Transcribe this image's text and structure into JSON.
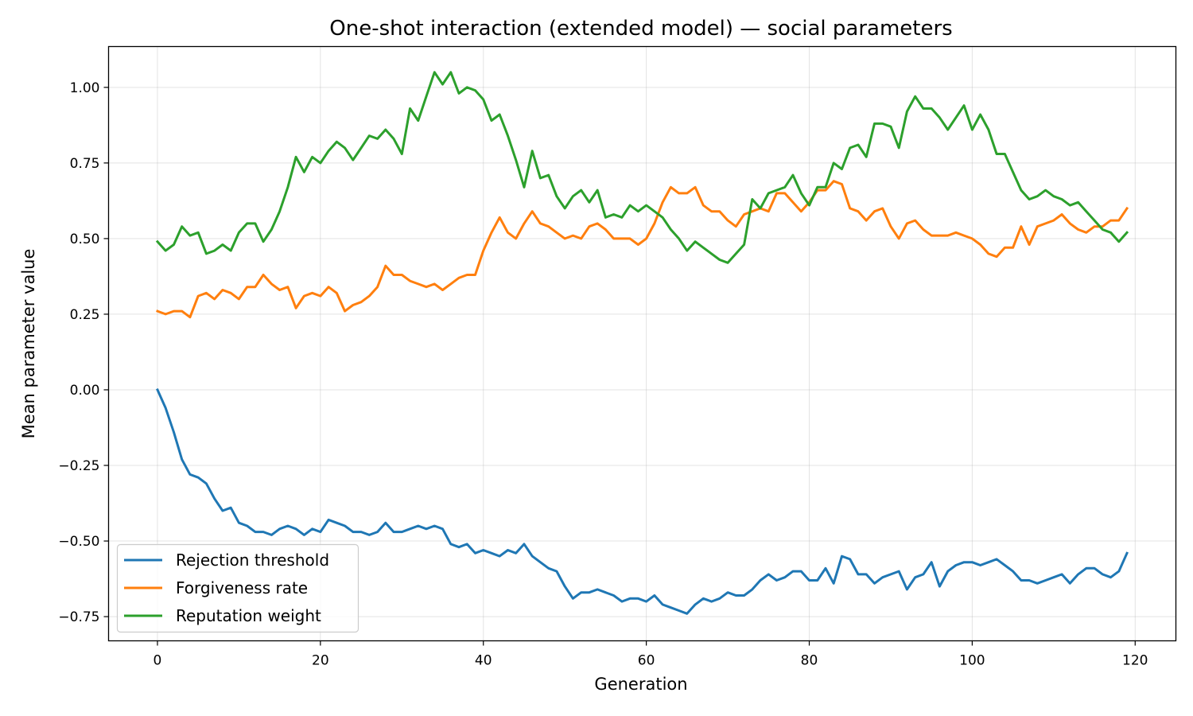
{
  "chart_data": {
    "type": "line",
    "title": "One-shot interaction (extended model) — social parameters",
    "xlabel": "Generation",
    "ylabel": "Mean parameter value",
    "xlim": [
      -6,
      125
    ],
    "ylim": [
      -0.83,
      1.135
    ],
    "xticks": [
      0,
      20,
      40,
      60,
      80,
      100,
      120
    ],
    "xtick_labels": [
      "0",
      "20",
      "40",
      "60",
      "80",
      "100",
      "120"
    ],
    "yticks": [
      -0.75,
      -0.5,
      -0.25,
      0.0,
      0.25,
      0.5,
      0.75,
      1.0
    ],
    "ytick_labels": [
      "−0.75",
      "−0.50",
      "−0.25",
      "0.00",
      "0.25",
      "0.50",
      "0.75",
      "1.00"
    ],
    "grid": true,
    "legend_position": "lower-left",
    "series": [
      {
        "name": "Rejection threshold",
        "color": "#1f77b4",
        "values": [
          0.0,
          -0.06,
          -0.14,
          -0.23,
          -0.28,
          -0.29,
          -0.31,
          -0.36,
          -0.4,
          -0.39,
          -0.44,
          -0.45,
          -0.47,
          -0.47,
          -0.48,
          -0.46,
          -0.45,
          -0.46,
          -0.48,
          -0.46,
          -0.47,
          -0.43,
          -0.44,
          -0.45,
          -0.47,
          -0.47,
          -0.48,
          -0.47,
          -0.44,
          -0.47,
          -0.47,
          -0.46,
          -0.45,
          -0.46,
          -0.45,
          -0.46,
          -0.51,
          -0.52,
          -0.51,
          -0.54,
          -0.53,
          -0.54,
          -0.55,
          -0.53,
          -0.54,
          -0.51,
          -0.55,
          -0.57,
          -0.59,
          -0.6,
          -0.65,
          -0.69,
          -0.67,
          -0.67,
          -0.66,
          -0.67,
          -0.68,
          -0.7,
          -0.69,
          -0.69,
          -0.7,
          -0.68,
          -0.71,
          -0.72,
          -0.73,
          -0.74,
          -0.71,
          -0.69,
          -0.7,
          -0.69,
          -0.67,
          -0.68,
          -0.68,
          -0.66,
          -0.63,
          -0.61,
          -0.63,
          -0.62,
          -0.6,
          -0.6,
          -0.63,
          -0.63,
          -0.59,
          -0.64,
          -0.55,
          -0.56,
          -0.61,
          -0.61,
          -0.64,
          -0.62,
          -0.61,
          -0.6,
          -0.66,
          -0.62,
          -0.61,
          -0.57,
          -0.65,
          -0.6,
          -0.58,
          -0.57,
          -0.57,
          -0.58,
          -0.57,
          -0.56,
          -0.58,
          -0.6,
          -0.63,
          -0.63,
          -0.64,
          -0.63,
          -0.62,
          -0.61,
          -0.64,
          -0.61,
          -0.59,
          -0.59,
          -0.61,
          -0.62,
          -0.6,
          -0.54
        ]
      },
      {
        "name": "Forgiveness rate",
        "color": "#ff7f0e",
        "values": [
          0.26,
          0.25,
          0.26,
          0.26,
          0.24,
          0.31,
          0.32,
          0.3,
          0.33,
          0.32,
          0.3,
          0.34,
          0.34,
          0.38,
          0.35,
          0.33,
          0.34,
          0.27,
          0.31,
          0.32,
          0.31,
          0.34,
          0.32,
          0.26,
          0.28,
          0.29,
          0.31,
          0.34,
          0.41,
          0.38,
          0.38,
          0.36,
          0.35,
          0.34,
          0.35,
          0.33,
          0.35,
          0.37,
          0.38,
          0.38,
          0.46,
          0.52,
          0.57,
          0.52,
          0.5,
          0.55,
          0.59,
          0.55,
          0.54,
          0.52,
          0.5,
          0.51,
          0.5,
          0.54,
          0.55,
          0.53,
          0.5,
          0.5,
          0.5,
          0.48,
          0.5,
          0.55,
          0.62,
          0.67,
          0.65,
          0.65,
          0.67,
          0.61,
          0.59,
          0.59,
          0.56,
          0.54,
          0.58,
          0.59,
          0.6,
          0.59,
          0.65,
          0.65,
          0.62,
          0.59,
          0.62,
          0.66,
          0.66,
          0.69,
          0.68,
          0.6,
          0.59,
          0.56,
          0.59,
          0.6,
          0.54,
          0.5,
          0.55,
          0.56,
          0.53,
          0.51,
          0.51,
          0.51,
          0.52,
          0.51,
          0.5,
          0.48,
          0.45,
          0.44,
          0.47,
          0.47,
          0.54,
          0.48,
          0.54,
          0.55,
          0.56,
          0.58,
          0.55,
          0.53,
          0.52,
          0.54,
          0.54,
          0.56,
          0.56,
          0.6
        ]
      },
      {
        "name": "Reputation weight",
        "color": "#2ca02c",
        "values": [
          0.49,
          0.46,
          0.48,
          0.54,
          0.51,
          0.52,
          0.45,
          0.46,
          0.48,
          0.46,
          0.52,
          0.55,
          0.55,
          0.49,
          0.53,
          0.59,
          0.67,
          0.77,
          0.72,
          0.77,
          0.75,
          0.79,
          0.82,
          0.8,
          0.76,
          0.8,
          0.84,
          0.83,
          0.86,
          0.83,
          0.78,
          0.93,
          0.89,
          0.97,
          1.05,
          1.01,
          1.05,
          0.98,
          1.0,
          0.99,
          0.96,
          0.89,
          0.91,
          0.84,
          0.76,
          0.67,
          0.79,
          0.7,
          0.71,
          0.64,
          0.6,
          0.64,
          0.66,
          0.62,
          0.66,
          0.57,
          0.58,
          0.57,
          0.61,
          0.59,
          0.61,
          0.59,
          0.57,
          0.53,
          0.5,
          0.46,
          0.49,
          0.47,
          0.45,
          0.43,
          0.42,
          0.45,
          0.48,
          0.63,
          0.6,
          0.65,
          0.66,
          0.67,
          0.71,
          0.65,
          0.61,
          0.67,
          0.67,
          0.75,
          0.73,
          0.8,
          0.81,
          0.77,
          0.88,
          0.88,
          0.87,
          0.8,
          0.92,
          0.97,
          0.93,
          0.93,
          0.9,
          0.86,
          0.9,
          0.94,
          0.86,
          0.91,
          0.86,
          0.78,
          0.78,
          0.72,
          0.66,
          0.63,
          0.64,
          0.66,
          0.64,
          0.63,
          0.61,
          0.62,
          0.59,
          0.56,
          0.53,
          0.52,
          0.49,
          0.52
        ]
      }
    ]
  }
}
